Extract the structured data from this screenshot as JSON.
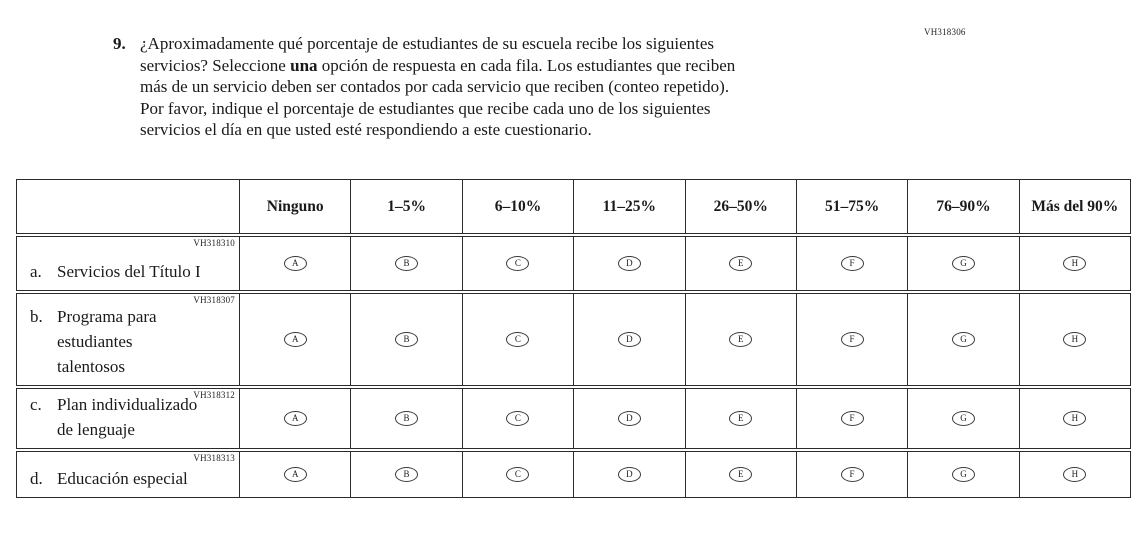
{
  "question": {
    "form_code": "VH318306",
    "number": "9.",
    "lines": [
      {
        "pre": "¿Aproximadamente qué porcentaje de estudiantes de su escuela recibe los siguientes",
        "bold": "",
        "post": ""
      },
      {
        "pre": "servicios? Seleccione ",
        "bold": "una",
        "post": " opción de respuesta en cada fila. Los estudiantes que reciben"
      },
      {
        "pre": "más de un servicio deben ser contados por cada servicio que reciben (conteo repetido).",
        "bold": "",
        "post": ""
      },
      {
        "pre": "Por favor, indique el porcentaje de estudiantes que recibe cada uno de los siguientes",
        "bold": "",
        "post": ""
      },
      {
        "pre": "servicios el día en que usted esté respondiendo a este cuestionario.",
        "bold": "",
        "post": ""
      }
    ]
  },
  "table": {
    "columns": [
      "Ninguno",
      "1–5%",
      "6–10%",
      "11–25%",
      "26–50%",
      "51–75%",
      "76–90%",
      "Más del 90%"
    ],
    "options": [
      "A",
      "B",
      "C",
      "D",
      "E",
      "F",
      "G",
      "H"
    ],
    "rows": [
      {
        "code": "VH318310",
        "prefix": "a.",
        "lines": [
          "Servicios del Título I"
        ]
      },
      {
        "code": "VH318307",
        "prefix": "b.",
        "lines": [
          "Programa para",
          "estudiantes",
          "talentosos"
        ]
      },
      {
        "code": "VH318312",
        "prefix": "c.",
        "lines": [
          "Plan individualizado",
          "de lenguaje"
        ]
      },
      {
        "code": "VH318313",
        "prefix": "d.",
        "lines": [
          "Educación especial"
        ]
      }
    ]
  },
  "colors": {
    "border": "#2b2b2b",
    "text": "#1a1a1a"
  }
}
